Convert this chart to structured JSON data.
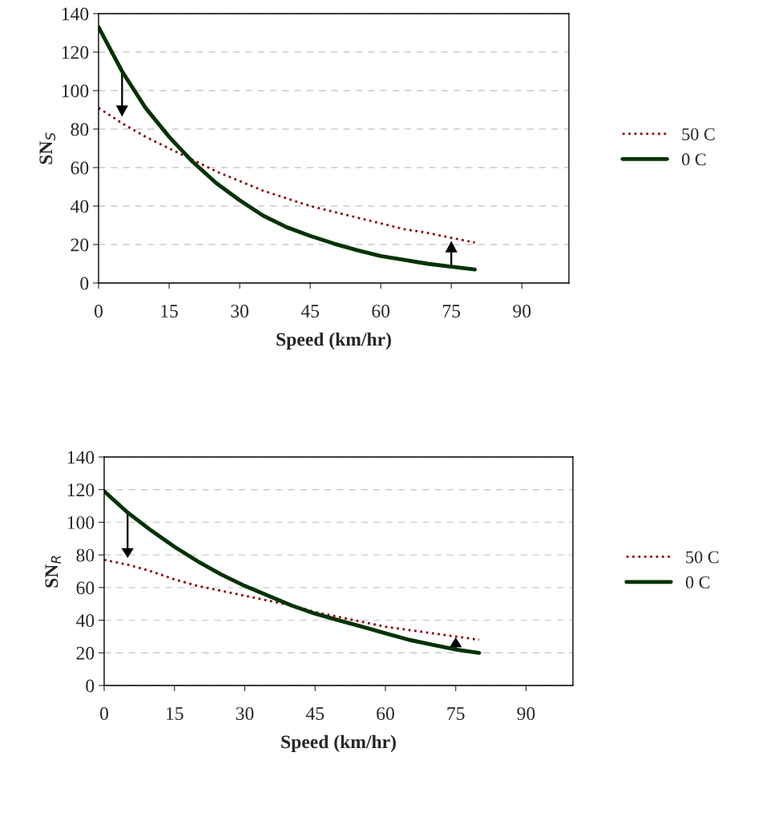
{
  "chart_data": [
    {
      "type": "line",
      "xlabel": "Speed (km/hr)",
      "ylabel": "SN$_{S}$",
      "x": [
        0,
        5,
        10,
        15,
        20,
        25,
        30,
        35,
        40,
        45,
        50,
        55,
        60,
        65,
        70,
        75,
        80
      ],
      "series": [
        {
          "name": "50 C",
          "color": "#8b0000",
          "line_style": "dotted",
          "values": [
            91,
            83,
            76,
            70,
            64,
            58,
            53,
            48,
            44,
            40,
            37,
            34,
            31,
            28,
            26,
            23.5,
            21
          ]
        },
        {
          "name": "0 C",
          "color": "#003300",
          "line_style": "solid",
          "values": [
            133,
            110,
            91,
            76,
            63,
            52,
            43,
            35,
            29,
            24.5,
            20.5,
            17,
            14,
            12,
            10,
            8.5,
            7
          ]
        }
      ],
      "xlim": [
        0,
        100
      ],
      "xticks": [
        0,
        15,
        30,
        45,
        60,
        75,
        90
      ],
      "ylim": [
        0,
        140
      ],
      "yticks": [
        0,
        20,
        40,
        60,
        80,
        100,
        120,
        140
      ],
      "grid": "y",
      "legend": "right",
      "marker": "none"
    },
    {
      "type": "line",
      "xlabel": "Speed (km/hr)",
      "ylabel": "SN$_{R}$",
      "x": [
        0,
        5,
        10,
        15,
        20,
        25,
        30,
        35,
        40,
        45,
        50,
        55,
        60,
        65,
        70,
        75,
        80
      ],
      "series": [
        {
          "name": "50 C",
          "color": "#8b0000",
          "line_style": "dotted",
          "values": [
            77,
            74,
            70,
            65,
            61,
            58,
            55,
            52,
            49,
            45,
            42,
            39,
            36,
            34,
            32,
            30,
            28
          ]
        },
        {
          "name": "0 C",
          "color": "#003300",
          "line_style": "solid",
          "values": [
            119,
            106,
            95,
            85,
            76,
            68,
            61,
            55,
            49,
            44,
            40,
            36,
            32,
            28,
            25,
            22,
            20
          ]
        }
      ],
      "xlim": [
        0,
        100
      ],
      "xticks": [
        0,
        15,
        30,
        45,
        60,
        75,
        90
      ],
      "ylim": [
        0,
        140
      ],
      "yticks": [
        0,
        20,
        40,
        60,
        80,
        100,
        120,
        140
      ],
      "grid": "y",
      "legend": "right",
      "marker": "none"
    }
  ]
}
